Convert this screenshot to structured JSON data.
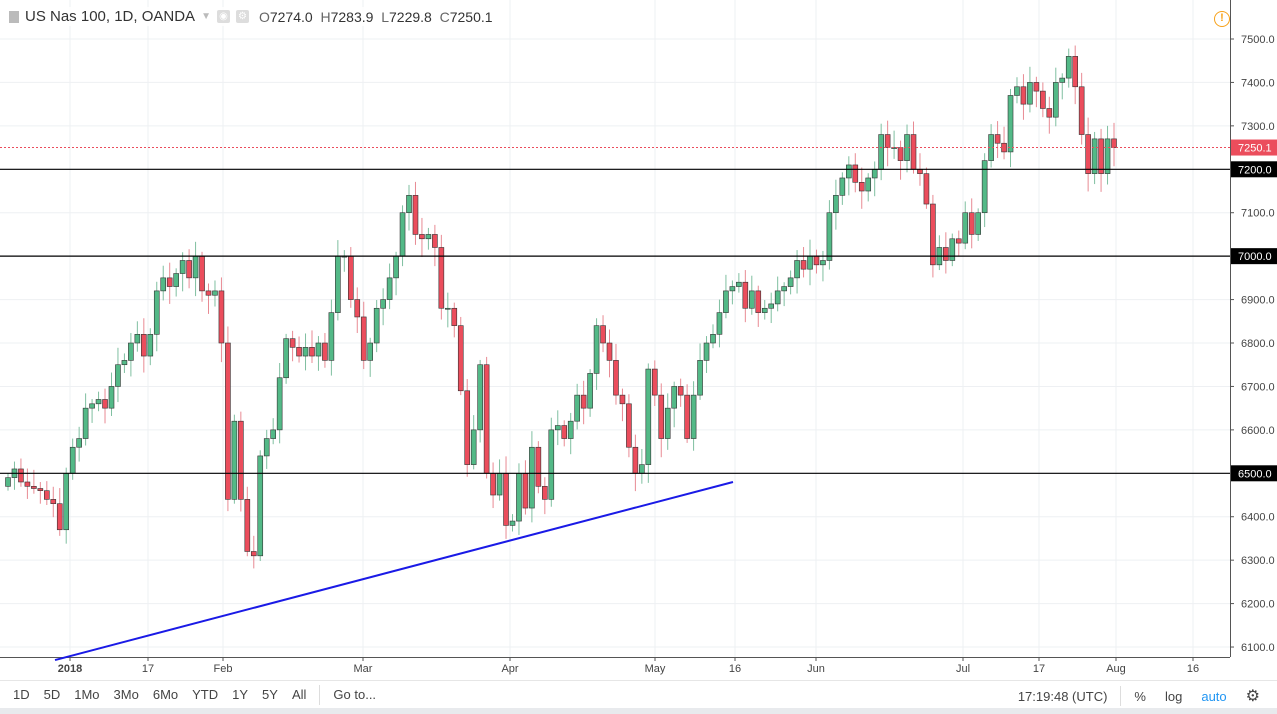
{
  "header": {
    "symbol": "US Nas 100, 1D, OANDA",
    "o_label": "O",
    "o": "7274.0",
    "h_label": "H",
    "h": "7283.9",
    "l_label": "L",
    "l": "7229.8",
    "c_label": "C",
    "c": "7250.1"
  },
  "toolbar": {
    "ranges": [
      "1D",
      "5D",
      "1Mo",
      "3Mo",
      "6Mo",
      "YTD",
      "1Y",
      "5Y",
      "All"
    ],
    "goto": "Go to...",
    "time": "17:19:48 (UTC)",
    "percent": "%",
    "log": "log",
    "auto": "auto"
  },
  "colors": {
    "up": "#53b987",
    "down": "#eb4d5c",
    "trend": "#1a1ae6",
    "level": "#000000",
    "last": "#eb4d5c",
    "auto": "#2196f3"
  },
  "chart_data": {
    "type": "candlestick",
    "title": "US Nas 100, 1D, OANDA",
    "ylim": [
      6080,
      7540
    ],
    "y_ticks": [
      6100,
      6200,
      6300,
      6400,
      6500,
      6600,
      6700,
      6800,
      6900,
      7000,
      7100,
      7200,
      7300,
      7400,
      7500
    ],
    "y_tick_labels": [
      "6100.0",
      "6200.0",
      "6300.0",
      "6400.0",
      "6500.0",
      "6600.0",
      "6700.0",
      "6800.0",
      "6900.0",
      "7000.0",
      "7100.0",
      "7200.0",
      "7300.0",
      "7400.0",
      "7500.0"
    ],
    "x_tick_labels": [
      "2018",
      "17",
      "Feb",
      "Mar",
      "Apr",
      "May",
      "16",
      "Jun",
      "Jul",
      "17",
      "Aug",
      "16"
    ],
    "horizontal_levels": [
      {
        "value": 7200,
        "label": "7200.0"
      },
      {
        "value": 7000,
        "label": "7000.0"
      },
      {
        "value": 6500,
        "label": "6500.0"
      }
    ],
    "last_price": {
      "value": 7250.1,
      "label": "7250.1"
    },
    "trendline": {
      "from": 6070,
      "to": 6480
    },
    "first_open": 6470,
    "close": [
      6490,
      6510,
      6480,
      6470,
      6465,
      6460,
      6440,
      6430,
      6370,
      6500,
      6560,
      6580,
      6650,
      6660,
      6670,
      6650,
      6700,
      6750,
      6760,
      6800,
      6820,
      6770,
      6820,
      6920,
      6950,
      6930,
      6960,
      6990,
      6950,
      7000,
      6920,
      6910,
      6920,
      6800,
      6440,
      6620,
      6440,
      6320,
      6310,
      6540,
      6580,
      6600,
      6720,
      6810,
      6790,
      6770,
      6790,
      6770,
      6800,
      6760,
      6870,
      7000,
      7000,
      6900,
      6860,
      6760,
      6800,
      6880,
      6900,
      6950,
      7000,
      7100,
      7140,
      7050,
      7040,
      7050,
      7020,
      6880,
      6880,
      6840,
      6690,
      6520,
      6600,
      6750,
      6500,
      6450,
      6500,
      6380,
      6390,
      6500,
      6420,
      6560,
      6470,
      6440,
      6600,
      6610,
      6580,
      6620,
      6680,
      6650,
      6730,
      6840,
      6800,
      6760,
      6680,
      6660,
      6560,
      6500,
      6520,
      6740,
      6680,
      6580,
      6650,
      6700,
      6680,
      6580,
      6680,
      6760,
      6800,
      6820,
      6870,
      6920,
      6930,
      6940,
      6880,
      6920,
      6870,
      6880,
      6890,
      6920,
      6930,
      6950,
      6990,
      6970,
      7000,
      6980,
      6990,
      7100,
      7140,
      7180,
      7210,
      7170,
      7150,
      7180,
      7200,
      7280,
      7250,
      7250,
      7220,
      7280,
      7200,
      7190,
      7120,
      6980,
      7020,
      6990,
      7040,
      7030,
      7100,
      7050,
      7100,
      7220,
      7280,
      7260,
      7240,
      7370,
      7390,
      7350,
      7400,
      7380,
      7340,
      7320,
      7400,
      7410,
      7460,
      7390,
      7280,
      7190,
      7270,
      7190,
      7270,
      7250
    ]
  }
}
